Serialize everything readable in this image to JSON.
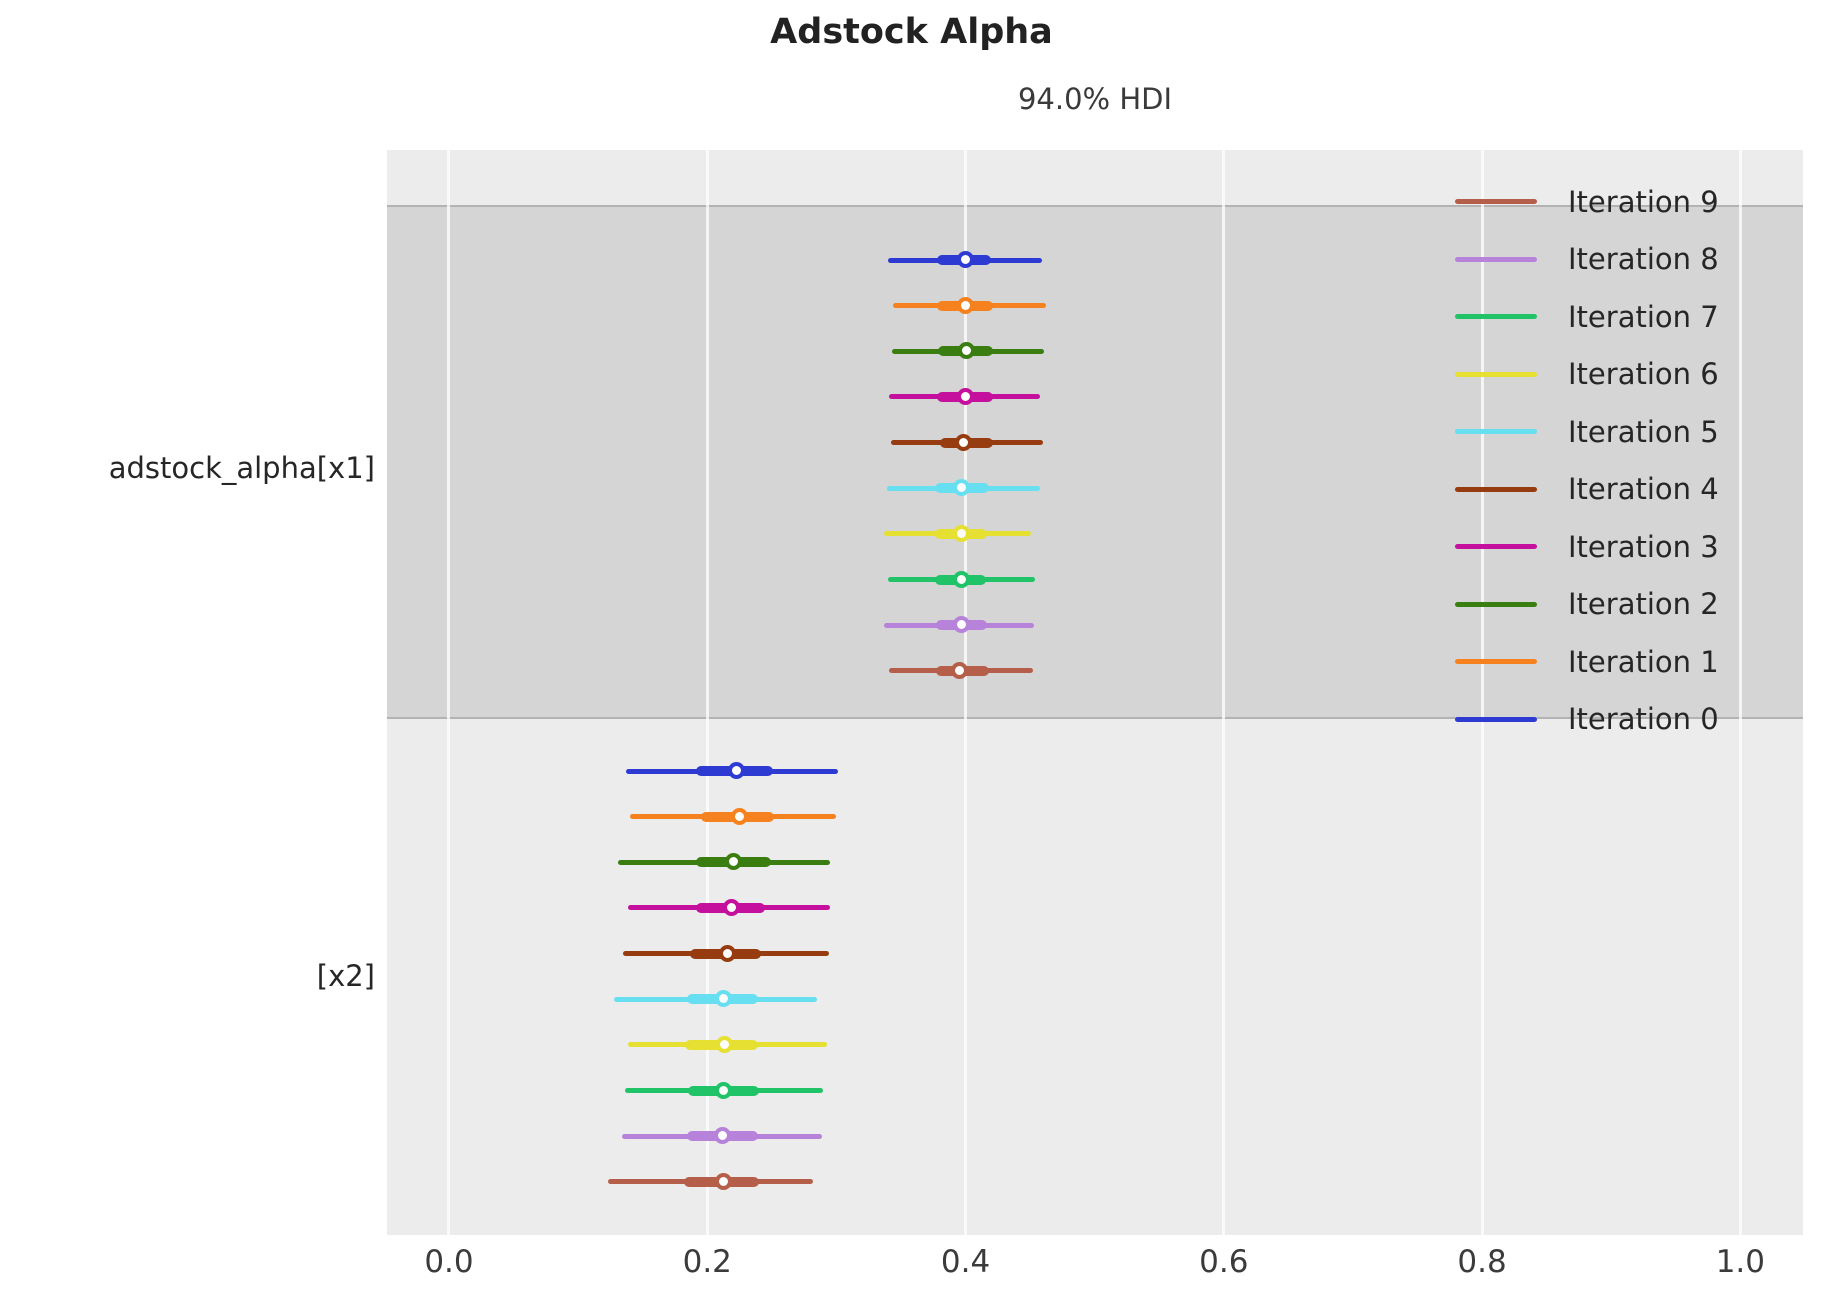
{
  "title": "Adstock Alpha",
  "subtitle": "94.0% HDI",
  "colors": {
    "figure_background": "#ffffff",
    "axes_background": "#ececec",
    "shaded_band": "#d5d5d5",
    "band_border": "#b3b3b3",
    "gridline": "#ffffff",
    "text": "#262626"
  },
  "chart_data": {
    "type": "forest",
    "title": "Adstock Alpha",
    "subtitle": "94.0% HDI",
    "interval_label": "94.0% HDI",
    "xlim": [
      -0.048,
      1.0485
    ],
    "x_ticks": [
      0.0,
      0.2,
      0.4,
      0.6,
      0.8,
      1.0
    ],
    "x_tick_labels": [
      "0.0",
      "0.2",
      "0.4",
      "0.6",
      "0.8",
      "1.0"
    ],
    "grid": "vertical-white",
    "legend_position": "upper right inside",
    "palette": {
      "0": "#2d3bd3",
      "1": "#f5821e",
      "2": "#3a7d10",
      "3": "#c4109c",
      "4": "#963c10",
      "5": "#68dff0",
      "6": "#e5e032",
      "7": "#21c368",
      "8": "#b782d9",
      "9": "#b55f4a"
    },
    "groups": [
      {
        "label": "adstock_alpha[x1]",
        "shaded": true,
        "rows": [
          {
            "iteration": 0,
            "median": 0.4,
            "hdi": [
              0.34,
              0.459
            ],
            "quartile": [
              0.378,
              0.42
            ]
          },
          {
            "iteration": 1,
            "median": 0.4,
            "hdi": [
              0.344,
              0.462
            ],
            "quartile": [
              0.378,
              0.421
            ]
          },
          {
            "iteration": 2,
            "median": 0.401,
            "hdi": [
              0.343,
              0.461
            ],
            "quartile": [
              0.379,
              0.421
            ]
          },
          {
            "iteration": 3,
            "median": 0.4,
            "hdi": [
              0.341,
              0.458
            ],
            "quartile": [
              0.378,
              0.421
            ]
          },
          {
            "iteration": 4,
            "median": 0.399,
            "hdi": [
              0.342,
              0.46
            ],
            "quartile": [
              0.38,
              0.421
            ]
          },
          {
            "iteration": 5,
            "median": 0.397,
            "hdi": [
              0.339,
              0.458
            ],
            "quartile": [
              0.376,
              0.418
            ]
          },
          {
            "iteration": 6,
            "median": 0.397,
            "hdi": [
              0.337,
              0.451
            ],
            "quartile": [
              0.376,
              0.417
            ]
          },
          {
            "iteration": 7,
            "median": 0.397,
            "hdi": [
              0.34,
              0.454
            ],
            "quartile": [
              0.376,
              0.416
            ]
          },
          {
            "iteration": 8,
            "median": 0.397,
            "hdi": [
              0.337,
              0.453
            ],
            "quartile": [
              0.377,
              0.417
            ]
          },
          {
            "iteration": 9,
            "median": 0.396,
            "hdi": [
              0.341,
              0.452
            ],
            "quartile": [
              0.377,
              0.418
            ]
          }
        ]
      },
      {
        "label": "[x2]",
        "shaded": false,
        "rows": [
          {
            "iteration": 0,
            "median": 0.223,
            "hdi": [
              0.137,
              0.301
            ],
            "quartile": [
              0.191,
              0.251
            ]
          },
          {
            "iteration": 1,
            "median": 0.225,
            "hdi": [
              0.14,
              0.3
            ],
            "quartile": [
              0.195,
              0.252
            ]
          },
          {
            "iteration": 2,
            "median": 0.221,
            "hdi": [
              0.131,
              0.295
            ],
            "quartile": [
              0.191,
              0.249
            ]
          },
          {
            "iteration": 3,
            "median": 0.219,
            "hdi": [
              0.139,
              0.295
            ],
            "quartile": [
              0.191,
              0.245
            ]
          },
          {
            "iteration": 4,
            "median": 0.216,
            "hdi": [
              0.135,
              0.294
            ],
            "quartile": [
              0.187,
              0.242
            ]
          },
          {
            "iteration": 5,
            "median": 0.213,
            "hdi": [
              0.128,
              0.285
            ],
            "quartile": [
              0.184,
              0.239
            ]
          },
          {
            "iteration": 6,
            "median": 0.214,
            "hdi": [
              0.139,
              0.293
            ],
            "quartile": [
              0.183,
              0.239
            ]
          },
          {
            "iteration": 7,
            "median": 0.213,
            "hdi": [
              0.136,
              0.29
            ],
            "quartile": [
              0.185,
              0.24
            ]
          },
          {
            "iteration": 8,
            "median": 0.212,
            "hdi": [
              0.134,
              0.289
            ],
            "quartile": [
              0.184,
              0.239
            ]
          },
          {
            "iteration": 9,
            "median": 0.213,
            "hdi": [
              0.123,
              0.282
            ],
            "quartile": [
              0.182,
              0.24
            ]
          }
        ]
      }
    ],
    "legend": [
      {
        "label": "Iteration 9",
        "iteration": 9
      },
      {
        "label": "Iteration 8",
        "iteration": 8
      },
      {
        "label": "Iteration 7",
        "iteration": 7
      },
      {
        "label": "Iteration 6",
        "iteration": 6
      },
      {
        "label": "Iteration 5",
        "iteration": 5
      },
      {
        "label": "Iteration 4",
        "iteration": 4
      },
      {
        "label": "Iteration 3",
        "iteration": 3
      },
      {
        "label": "Iteration 2",
        "iteration": 2
      },
      {
        "label": "Iteration 1",
        "iteration": 1
      },
      {
        "label": "Iteration 0",
        "iteration": 0
      }
    ]
  }
}
